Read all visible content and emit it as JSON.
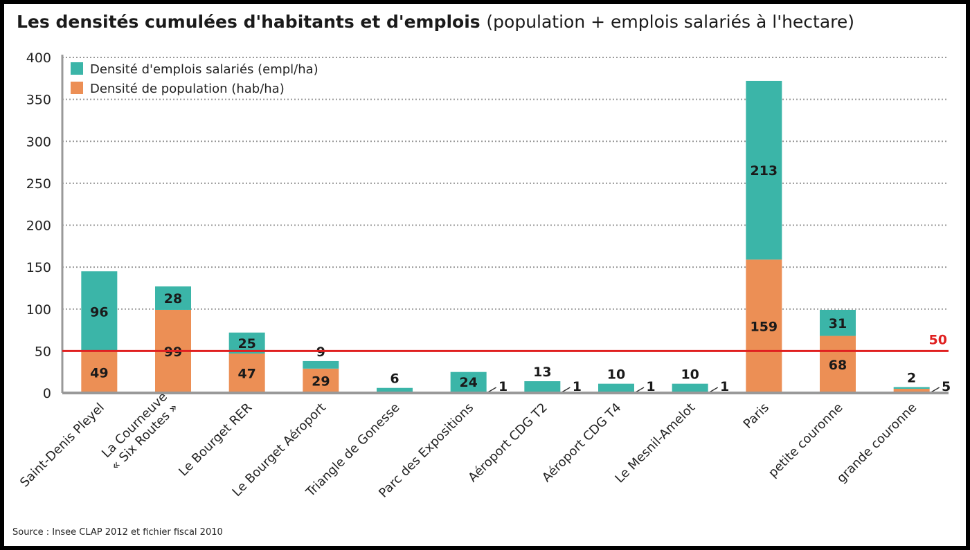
{
  "chart_data": {
    "type": "bar",
    "stacked": true,
    "title": "Les densités cumulées d'habitants et d'emplois",
    "subtitle": "(population + emplois salariés à l'hectare)",
    "categories": [
      "Saint-Denis Pleyel",
      "La Courneuve\n« Six Routes »",
      "Le Bourget RER",
      "Le Bourget Aéroport",
      "Triangle de Gonesse",
      "Parc des Expositions",
      "Aéroport CDG T2",
      "Aéroport CDG T4",
      "Le Mesnil-Amelot",
      "Paris",
      "petite couronne",
      "grande couronne"
    ],
    "series": [
      {
        "name": "Densité de population (hab/ha)",
        "color": "#ec8f55",
        "values": [
          49,
          99,
          47,
          29,
          0,
          1,
          1,
          1,
          1,
          159,
          68,
          5
        ]
      },
      {
        "name": "Densité d'emplois salariés (empl/ha)",
        "color": "#3bb5a8",
        "values": [
          96,
          28,
          25,
          9,
          6,
          24,
          13,
          10,
          10,
          213,
          31,
          2
        ]
      }
    ],
    "ylim": [
      0,
      400
    ],
    "yticks": [
      0,
      50,
      100,
      150,
      200,
      250,
      300,
      350,
      400
    ],
    "grid": true,
    "legend_position": "top-left",
    "reference_line": {
      "value": 50,
      "label": "50",
      "color": "#e02020"
    },
    "source": "Source : Insee CLAP 2012 et fichier fiscal 2010"
  }
}
